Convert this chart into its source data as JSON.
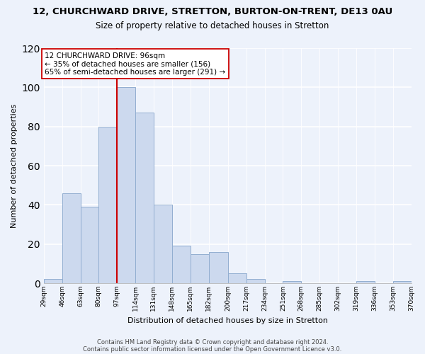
{
  "title": "12, CHURCHWARD DRIVE, STRETTON, BURTON-ON-TRENT, DE13 0AU",
  "subtitle": "Size of property relative to detached houses in Stretton",
  "xlabel": "Distribution of detached houses by size in Stretton",
  "ylabel": "Number of detached properties",
  "bar_color": "#ccd9ee",
  "bar_edge_color": "#92aed0",
  "bin_edges": [
    29,
    46,
    63,
    80,
    97,
    114,
    131,
    148,
    165,
    182,
    200,
    217,
    234,
    251,
    268,
    285,
    302,
    319,
    336,
    353,
    370
  ],
  "counts": [
    2,
    46,
    39,
    80,
    100,
    87,
    40,
    19,
    15,
    16,
    5,
    2,
    0,
    1,
    0,
    0,
    0,
    1,
    0,
    1
  ],
  "tick_labels": [
    "29sqm",
    "46sqm",
    "63sqm",
    "80sqm",
    "97sqm",
    "114sqm",
    "131sqm",
    "148sqm",
    "165sqm",
    "182sqm",
    "200sqm",
    "217sqm",
    "234sqm",
    "251sqm",
    "268sqm",
    "285sqm",
    "302sqm",
    "319sqm",
    "336sqm",
    "353sqm",
    "370sqm"
  ],
  "vline_x": 97,
  "vline_color": "#cc0000",
  "annotation_line1": "12 CHURCHWARD DRIVE: 96sqm",
  "annotation_line2": "← 35% of detached houses are smaller (156)",
  "annotation_line3": "65% of semi-detached houses are larger (291) →",
  "annotation_box_color": "#ffffff",
  "annotation_box_edge": "#cc0000",
  "ylim": [
    0,
    120
  ],
  "yticks": [
    0,
    20,
    40,
    60,
    80,
    100,
    120
  ],
  "footer1": "Contains HM Land Registry data © Crown copyright and database right 2024.",
  "footer2": "Contains public sector information licensed under the Open Government Licence v3.0.",
  "figsize": [
    6.0,
    5.0
  ],
  "dpi": 100,
  "background_color": "#edf2fb"
}
